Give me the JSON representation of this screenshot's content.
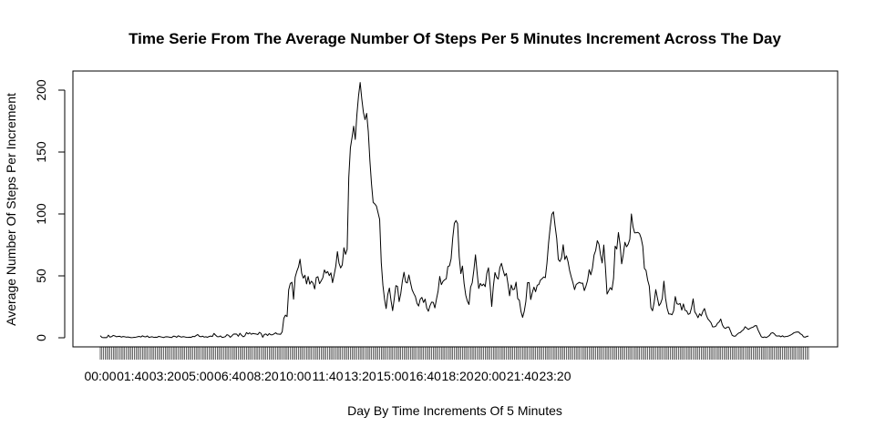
{
  "chart_data": {
    "type": "line",
    "title": "Time Serie From The Average Number Of Steps Per 5 Minutes Increment Across The Day",
    "xlabel": "Day By Time Increments Of 5 Minutes",
    "ylabel": "Average Number Of Steps Per Increment",
    "ylim": [
      0,
      210
    ],
    "yticks": [
      0,
      50,
      100,
      150,
      200
    ],
    "xtick_labels": [
      "00:00",
      "01:40",
      "03:20",
      "05:00",
      "06:40",
      "08:20",
      "10:00",
      "11:40",
      "13:20",
      "15:00",
      "16:40",
      "18:20",
      "20:00",
      "21:40",
      "23:20"
    ],
    "xtick_label_every_n_intervals": 20,
    "x_interval_minutes": 5,
    "grid": false,
    "legend": "none",
    "series": [
      {
        "values": [
          1.7,
          0.3,
          0.1,
          0.2,
          0.1,
          2.1,
          0.5,
          0.9,
          1.9,
          1.5,
          0.8,
          1.1,
          1.2,
          0.5,
          1.0,
          0.8,
          0.5,
          0.6,
          0.4,
          0.1,
          0.2,
          0.4,
          0.5,
          0.8,
          1.1,
          0.6,
          1.6,
          0.9,
          0.7,
          1.5,
          0.3,
          0.6,
          0.8,
          0.3,
          0.5,
          0.4,
          1.1,
          0.8,
          0.5,
          0.2,
          0.7,
          0.8,
          0.6,
          0.4,
          0.2,
          1.3,
          1.2,
          0.4,
          1.6,
          1.0,
          0.5,
          0.9,
          0.7,
          0.4,
          0.3,
          0.5,
          0.4,
          1.1,
          0.9,
          1.8,
          2.6,
          1.2,
          0.8,
          1.3,
          0.5,
          0.8,
          0.4,
          1.0,
          1.4,
          1.0,
          3.5,
          2.1,
          0.9,
          0.8,
          1.5,
          0.3,
          0.5,
          0.9,
          2.5,
          2.0,
          0.4,
          1.5,
          2.9,
          3.0,
          2.9,
          1.2,
          3.6,
          2.0,
          0.8,
          1.5,
          4.2,
          3.1,
          4.0,
          2.8,
          3.5,
          3.2,
          3.0,
          2.6,
          4.4,
          3.5,
          0.4,
          2.7,
          3.0,
          1.8,
          3.4,
          2.4,
          2.4,
          3.2,
          4.0,
          3.0,
          2.9,
          2.8,
          4.8,
          15.7,
          18.3,
          17.1,
          38.7,
          43.8,
          44.8,
          31.2,
          49.0,
          53.6,
          57.1,
          63.4,
          52.1,
          48.2,
          50.5,
          43.5,
          49.5,
          43.3,
          45.7,
          44.1,
          39.4,
          48.7,
          49.3,
          43.7,
          46.0,
          48.4,
          54.8,
          52.2,
          53.5,
          50.2,
          52.4,
          44.5,
          50.9,
          57.8,
          69.6,
          60.1,
          56.4,
          58.8,
          72.7,
          67.4,
          71.4,
          129.4,
          153.4,
          161.7,
          170.9,
          160.2,
          180.2,
          195.3,
          206.2,
          193.0,
          182.1,
          176.2,
          181.2,
          166.7,
          143.0,
          124.1,
          109.4,
          108.1,
          106.4,
          101.1,
          95.6,
          60.7,
          42.5,
          31.2,
          23.6,
          34.9,
          40.2,
          30.1,
          21.9,
          31.6,
          42.1,
          41.4,
          29.2,
          35.6,
          45.8,
          52.9,
          45.0,
          44.3,
          50.7,
          44.5,
          38.7,
          35.8,
          33.3,
          27.8,
          25.6,
          31.2,
          32.6,
          28.5,
          31.2,
          24.0,
          21.4,
          25.9,
          28.8,
          28.6,
          24.1,
          31.3,
          37.8,
          49.5,
          42.9,
          45.6,
          46.8,
          47.6,
          57.5,
          58.1,
          63.9,
          80.6,
          92.5,
          94.7,
          92.2,
          65.4,
          51.8,
          57.9,
          43.8,
          34.5,
          29.6,
          26.9,
          40.9,
          44.4,
          54.6,
          67.0,
          52.7,
          39.8,
          43.9,
          42.0,
          43.4,
          41.3,
          52.0,
          56.5,
          42.5,
          25.3,
          41.5,
          52.7,
          48.9,
          47.4,
          56.8,
          60.1,
          54.7,
          50.0,
          52.0,
          43.6,
          33.9,
          42.6,
          38.8,
          39.3,
          44.9,
          31.6,
          30.3,
          21.3,
          16.5,
          21.2,
          29.2,
          44.4,
          44.6,
          30.9,
          36.6,
          40.9,
          37.2,
          42.4,
          43.0,
          46.6,
          47.7,
          49.1,
          48.5,
          60.2,
          76.5,
          89.3,
          99.6,
          101.7,
          90.4,
          80.3,
          63.2,
          61.6,
          64.7,
          75.1,
          63.2,
          66.2,
          61.3,
          54.0,
          49.0,
          44.5,
          38.9,
          43.0,
          44.0,
          44.8,
          44.0,
          44.1,
          38.1,
          41.7,
          46.3,
          55.0,
          50.8,
          56.3,
          66.8,
          70.5,
          78.4,
          75.6,
          67.0,
          60.4,
          74.9,
          56.8,
          35.3,
          37.9,
          40.5,
          38.7,
          47.9,
          74.0,
          71.7,
          85.0,
          75.2,
          59.7,
          67.2,
          77.1,
          73.5,
          75.5,
          79.5,
          100.0,
          89.5,
          84.7,
          84.8,
          85.1,
          84.1,
          80.4,
          73.9,
          56.0,
          54.4,
          46.6,
          41.7,
          24.3,
          21.8,
          28.7,
          38.9,
          32.2,
          25.8,
          27.9,
          31.7,
          45.7,
          32.0,
          23.8,
          19.2,
          19.2,
          18.6,
          21.8,
          33.3,
          27.5,
          27.0,
          27.7,
          22.3,
          27.3,
          22.1,
          21.8,
          18.9,
          19.5,
          24.2,
          31.4,
          20.9,
          18.9,
          16.2,
          19.4,
          17.7,
          21.3,
          23.6,
          18.7,
          15.4,
          13.8,
          12.2,
          8.8,
          8.8,
          9.4,
          11.7,
          12.8,
          15.1,
          10.4,
          8.2,
          7.5,
          8.6,
          8.6,
          5.4,
          2.1,
          1.3,
          1.3,
          2.7,
          3.8,
          4.2,
          5.5,
          6.5,
          8.9,
          7.8,
          6.7,
          7.6,
          8.2,
          8.6,
          9.7,
          9.8,
          6.2,
          3.5,
          0.8,
          0.2,
          0.7,
          0.2,
          0.9,
          1.9,
          3.7,
          4.1,
          3.2,
          1.6,
          1.4,
          1.6,
          0.8,
          1.6,
          0.7,
          1.0,
          1.1,
          1.6,
          2.2,
          3.0,
          4.0,
          4.4,
          4.7,
          4.6,
          3.2,
          2.5,
          0.7,
          0.5,
          1.1,
          1.4
        ]
      }
    ]
  }
}
